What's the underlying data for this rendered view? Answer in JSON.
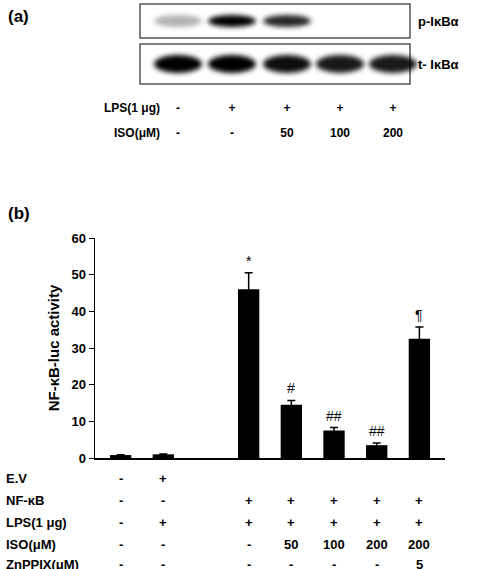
{
  "panel_a": {
    "label": "(a)",
    "blot_rows": [
      {
        "label": "p-IκBα",
        "band_intensity": [
          0.3,
          1,
          0.85,
          0,
          0
        ]
      },
      {
        "label": "t- IκBα",
        "band_intensity": [
          1,
          1,
          0.95,
          0.9,
          0.9
        ]
      }
    ],
    "conditions": [
      {
        "label": "LPS(1 μg)",
        "cells": [
          "-",
          "+",
          "+",
          "+",
          "+"
        ]
      },
      {
        "label": "ISO(μM)",
        "cells": [
          "-",
          "-",
          "50",
          "100",
          "200"
        ]
      }
    ]
  },
  "chart_data": {
    "type": "bar",
    "title": "(b)",
    "ylabel": "NF-κB-luc activity",
    "categories": [
      null,
      null,
      null,
      null,
      null,
      null,
      null,
      null
    ],
    "values": [
      0.8,
      1.0,
      null,
      46,
      14.5,
      7.5,
      3.5,
      32.5
    ],
    "errors": [
      0.1,
      0.1,
      null,
      4.5,
      1.2,
      0.8,
      0.6,
      3.2
    ],
    "significance": [
      null,
      null,
      null,
      "*",
      "#",
      "##",
      "##",
      "¶"
    ],
    "color": "#000000",
    "ylim": [
      0,
      60
    ],
    "yticks": [
      0,
      10,
      20,
      30,
      40,
      50,
      60
    ],
    "grid": false,
    "condition_table": [
      {
        "label": "E.V",
        "cells": [
          "-",
          "+",
          null,
          null,
          null,
          null,
          null,
          null
        ]
      },
      {
        "label": "NF-κB",
        "cells": [
          "-",
          "-",
          null,
          "+",
          "+",
          "+",
          "+",
          "+"
        ]
      },
      {
        "label": "LPS(1 μg)",
        "cells": [
          "-",
          "+",
          null,
          "+",
          "+",
          "+",
          "+",
          "+"
        ]
      },
      {
        "label": "ISO(μM)",
        "cells": [
          "-",
          "-",
          null,
          "-",
          "50",
          "100",
          "200",
          "200"
        ]
      },
      {
        "label": "ZnPPIX(μM)",
        "cells": [
          "-",
          "-",
          null,
          "-",
          "-",
          "-",
          "-",
          "5"
        ]
      }
    ]
  }
}
